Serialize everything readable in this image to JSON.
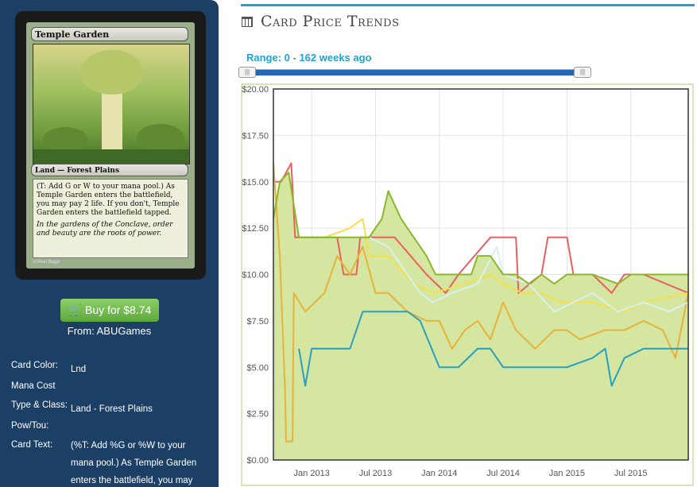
{
  "card": {
    "name": "Temple Garden",
    "type_line": "Land — Forest Plains",
    "rules_text": "(T: Add G or W to your mana pool.) As Temple Garden enters the battlefield, you may pay 2 life. If you don't, Temple Garden enters the battlefield tapped.",
    "flavor_text": "In the gardens of the Conclave, order and beauty are the roots of power.",
    "artist": "Volkan Baga"
  },
  "buy": {
    "label": "Buy for $8.74",
    "from": "From: ABUGames",
    "icon": "cart-icon"
  },
  "info": [
    {
      "label": "Card Color:",
      "value": "Lnd"
    },
    {
      "label": "Mana Cost",
      "value": ""
    },
    {
      "label": "Type & Class:",
      "value": "Land - Forest Plains"
    },
    {
      "label": "Pow/Tou:",
      "value": ""
    },
    {
      "label": "Card Text:",
      "value": "(%T: Add %G or %W to your mana pool.) As Temple Garden enters the battlefield, you may"
    }
  ],
  "header": {
    "title": "Card Price Trends",
    "icon": "calendar-icon"
  },
  "range": {
    "label": "Range: 0 - 162 weeks ago",
    "accent": "#1fa3cf",
    "fill": "#2366b8"
  },
  "chart_data": {
    "type": "line",
    "ylim": [
      0,
      20
    ],
    "yticks": [
      "$0.00",
      "$2.50",
      "$5.00",
      "$7.50",
      "$10.00",
      "$12.50",
      "$15.00",
      "$17.50",
      "$20.00"
    ],
    "xlim": [
      2012.7,
      2015.95
    ],
    "xticks": [
      {
        "x": 2013.0,
        "label": "Jan 2013"
      },
      {
        "x": 2013.5,
        "label": "Jul 2013"
      },
      {
        "x": 2014.0,
        "label": "Jan 2014"
      },
      {
        "x": 2014.5,
        "label": "Jul 2014"
      },
      {
        "x": 2015.0,
        "label": "Jan 2015"
      },
      {
        "x": 2015.5,
        "label": "Jul 2015"
      }
    ],
    "grid": true,
    "area": {
      "color": "#8ab72a",
      "fill": "#d4e6a0",
      "points": [
        [
          2012.7,
          13
        ],
        [
          2012.75,
          15
        ],
        [
          2012.82,
          15.5
        ],
        [
          2012.9,
          12
        ],
        [
          2013.0,
          12
        ],
        [
          2013.2,
          12
        ],
        [
          2013.35,
          12
        ],
        [
          2013.45,
          12
        ],
        [
          2013.55,
          13
        ],
        [
          2013.6,
          14.5
        ],
        [
          2013.7,
          13
        ],
        [
          2013.8,
          12
        ],
        [
          2013.9,
          11
        ],
        [
          2013.97,
          10
        ],
        [
          2014.1,
          10
        ],
        [
          2014.25,
          10
        ],
        [
          2014.3,
          11
        ],
        [
          2014.4,
          11
        ],
        [
          2014.5,
          10
        ],
        [
          2014.6,
          10
        ],
        [
          2014.7,
          9.5
        ],
        [
          2014.8,
          10
        ],
        [
          2014.9,
          9.5
        ],
        [
          2015.0,
          10
        ],
        [
          2015.2,
          10
        ],
        [
          2015.4,
          9.5
        ],
        [
          2015.5,
          10
        ],
        [
          2015.7,
          10
        ],
        [
          2015.95,
          10
        ]
      ]
    },
    "series": [
      {
        "color": "#e86060",
        "points": [
          [
            2012.7,
            15
          ],
          [
            2012.76,
            15
          ],
          [
            2012.84,
            16
          ],
          [
            2012.87,
            12
          ],
          [
            2013.05,
            12
          ],
          [
            2013.2,
            12
          ],
          [
            2013.25,
            10
          ],
          [
            2013.35,
            10
          ],
          [
            2013.38,
            12
          ],
          [
            2013.55,
            12
          ],
          [
            2013.65,
            12
          ],
          [
            2013.9,
            10
          ],
          [
            2014.05,
            9
          ],
          [
            2014.15,
            10
          ],
          [
            2014.4,
            12
          ],
          [
            2014.6,
            12
          ],
          [
            2014.62,
            9
          ],
          [
            2014.8,
            10
          ],
          [
            2014.85,
            12
          ],
          [
            2015.0,
            12
          ],
          [
            2015.05,
            10
          ],
          [
            2015.2,
            10
          ],
          [
            2015.35,
            9
          ],
          [
            2015.45,
            10
          ],
          [
            2015.6,
            10
          ],
          [
            2015.95,
            9
          ]
        ]
      },
      {
        "color": "#e8b23a",
        "points": [
          [
            2012.7,
            16
          ],
          [
            2012.75,
            11
          ],
          [
            2012.79,
            4
          ],
          [
            2012.8,
            1
          ],
          [
            2012.85,
            1
          ],
          [
            2012.86,
            9
          ],
          [
            2012.95,
            8
          ],
          [
            2013.1,
            9
          ],
          [
            2013.2,
            11
          ],
          [
            2013.3,
            10
          ],
          [
            2013.4,
            11.5
          ],
          [
            2013.5,
            9
          ],
          [
            2013.6,
            9
          ],
          [
            2013.75,
            8
          ],
          [
            2013.9,
            7.5
          ],
          [
            2014.0,
            7.5
          ],
          [
            2014.1,
            6
          ],
          [
            2014.2,
            7
          ],
          [
            2014.3,
            7.5
          ],
          [
            2014.4,
            6.5
          ],
          [
            2014.5,
            8.5
          ],
          [
            2014.6,
            7
          ],
          [
            2014.75,
            6
          ],
          [
            2014.9,
            7
          ],
          [
            2015.0,
            7
          ],
          [
            2015.1,
            6.5
          ],
          [
            2015.3,
            7
          ],
          [
            2015.45,
            7
          ],
          [
            2015.6,
            7.5
          ],
          [
            2015.75,
            7
          ],
          [
            2015.85,
            5.5
          ],
          [
            2015.95,
            9
          ]
        ]
      },
      {
        "color": "#2a9fc0",
        "points": [
          [
            2012.9,
            6
          ],
          [
            2012.95,
            4
          ],
          [
            2013.0,
            6
          ],
          [
            2013.15,
            6
          ],
          [
            2013.3,
            6
          ],
          [
            2013.4,
            8
          ],
          [
            2013.55,
            8
          ],
          [
            2013.75,
            8
          ],
          [
            2013.85,
            7.5
          ],
          [
            2014.0,
            5
          ],
          [
            2014.15,
            5
          ],
          [
            2014.3,
            6
          ],
          [
            2014.4,
            6
          ],
          [
            2014.5,
            5
          ],
          [
            2014.7,
            5
          ],
          [
            2014.85,
            5
          ],
          [
            2015.0,
            5
          ],
          [
            2015.2,
            5.5
          ],
          [
            2015.3,
            6
          ],
          [
            2015.35,
            4
          ],
          [
            2015.45,
            5.5
          ],
          [
            2015.6,
            6
          ],
          [
            2015.8,
            6
          ],
          [
            2015.95,
            6
          ]
        ]
      },
      {
        "color": "#f5e04a",
        "points": [
          [
            2013.1,
            12
          ],
          [
            2013.3,
            12.5
          ],
          [
            2013.4,
            13
          ],
          [
            2013.45,
            11
          ],
          [
            2013.6,
            11
          ],
          [
            2013.8,
            9.5
          ],
          [
            2013.95,
            9
          ],
          [
            2014.2,
            9.5
          ],
          [
            2014.4,
            10
          ],
          [
            2014.5,
            9.5
          ],
          [
            2014.65,
            9
          ],
          [
            2014.8,
            9
          ],
          [
            2014.95,
            8.5
          ],
          [
            2015.2,
            8.5
          ],
          [
            2015.45,
            8
          ],
          [
            2015.6,
            8.5
          ],
          [
            2015.95,
            9
          ]
        ]
      },
      {
        "color": "#d8f0f0",
        "points": [
          [
            2013.3,
            12
          ],
          [
            2013.45,
            12
          ],
          [
            2013.6,
            11.5
          ],
          [
            2013.85,
            9
          ],
          [
            2013.95,
            8.5
          ],
          [
            2014.1,
            9
          ],
          [
            2014.3,
            9.5
          ],
          [
            2014.45,
            11.5
          ],
          [
            2014.5,
            10
          ],
          [
            2014.7,
            9.5
          ],
          [
            2014.9,
            8
          ],
          [
            2015.05,
            8.5
          ],
          [
            2015.2,
            9
          ],
          [
            2015.4,
            8
          ],
          [
            2015.6,
            8.5
          ],
          [
            2015.8,
            8
          ],
          [
            2015.95,
            8.5
          ]
        ]
      }
    ]
  }
}
